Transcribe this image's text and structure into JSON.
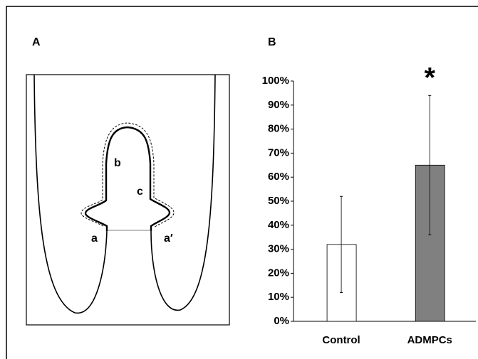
{
  "panels": {
    "a_label": "A",
    "b_label": "B"
  },
  "diagram": {
    "labels": [
      "a",
      "b",
      "c",
      "a′"
    ]
  },
  "chart_data": {
    "type": "bar",
    "categories": [
      "Control",
      "ADMPCs"
    ],
    "values": [
      32,
      65
    ],
    "errors": [
      20,
      29
    ],
    "colors": [
      "#ffffff",
      "#808080"
    ],
    "annotations": [
      {
        "category": 1,
        "text": "*"
      }
    ],
    "ylim": [
      0,
      100
    ],
    "yticks": [
      {
        "value": 0,
        "label": "0%"
      },
      {
        "value": 10,
        "label": "10%"
      },
      {
        "value": 20,
        "label": "20%"
      },
      {
        "value": 30,
        "label": "30%"
      },
      {
        "value": 40,
        "label": "40%"
      },
      {
        "value": 50,
        "label": "50%"
      },
      {
        "value": 60,
        "label": "60%"
      },
      {
        "value": 70,
        "label": "70%"
      },
      {
        "value": 80,
        "label": "80%"
      },
      {
        "value": 90,
        "label": "90%"
      },
      {
        "value": 100,
        "label": "100%"
      }
    ],
    "grid": false
  }
}
